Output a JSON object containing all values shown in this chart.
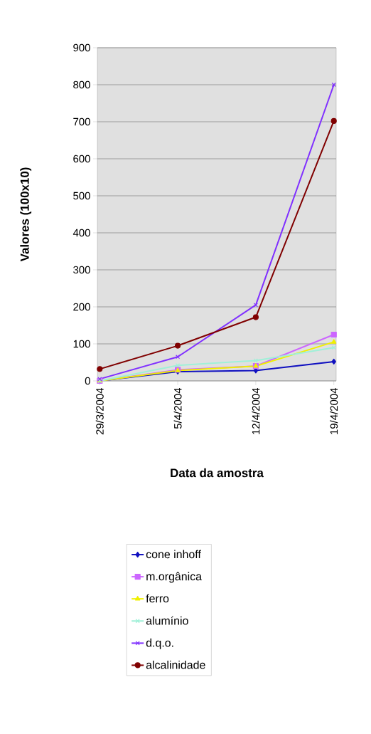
{
  "chart_data": {
    "type": "line",
    "xlabel": "Data da amostra",
    "ylabel": "Valores (100x10)",
    "categories": [
      "29/3/2004",
      "5/4/2004",
      "12/4/2004",
      "19/4/2004"
    ],
    "ylim": [
      0,
      900
    ],
    "yticks": [
      0,
      100,
      200,
      300,
      400,
      500,
      600,
      700,
      800,
      900
    ],
    "grid": "y",
    "legend": "bottom",
    "series": [
      {
        "name": "cone inhoff",
        "color": "#1010c0",
        "marker": "diamond",
        "values": [
          0,
          25,
          28,
          52
        ]
      },
      {
        "name": "m.orgânica",
        "color": "#cc66ff",
        "marker": "square",
        "values": [
          0,
          30,
          40,
          125
        ]
      },
      {
        "name": "ferro",
        "color": "#f0f000",
        "marker": "triangle",
        "values": [
          0,
          28,
          40,
          105
        ]
      },
      {
        "name": "alumínio",
        "color": "#a0f0d8",
        "marker": "cross",
        "values": [
          0,
          42,
          55,
          90
        ]
      },
      {
        "name": "d.q.o.",
        "color": "#8030ff",
        "marker": "cross",
        "values": [
          5,
          65,
          205,
          800
        ]
      },
      {
        "name": "alcalinidade",
        "color": "#800000",
        "marker": "circle",
        "values": [
          32,
          95,
          172,
          702
        ]
      }
    ]
  }
}
